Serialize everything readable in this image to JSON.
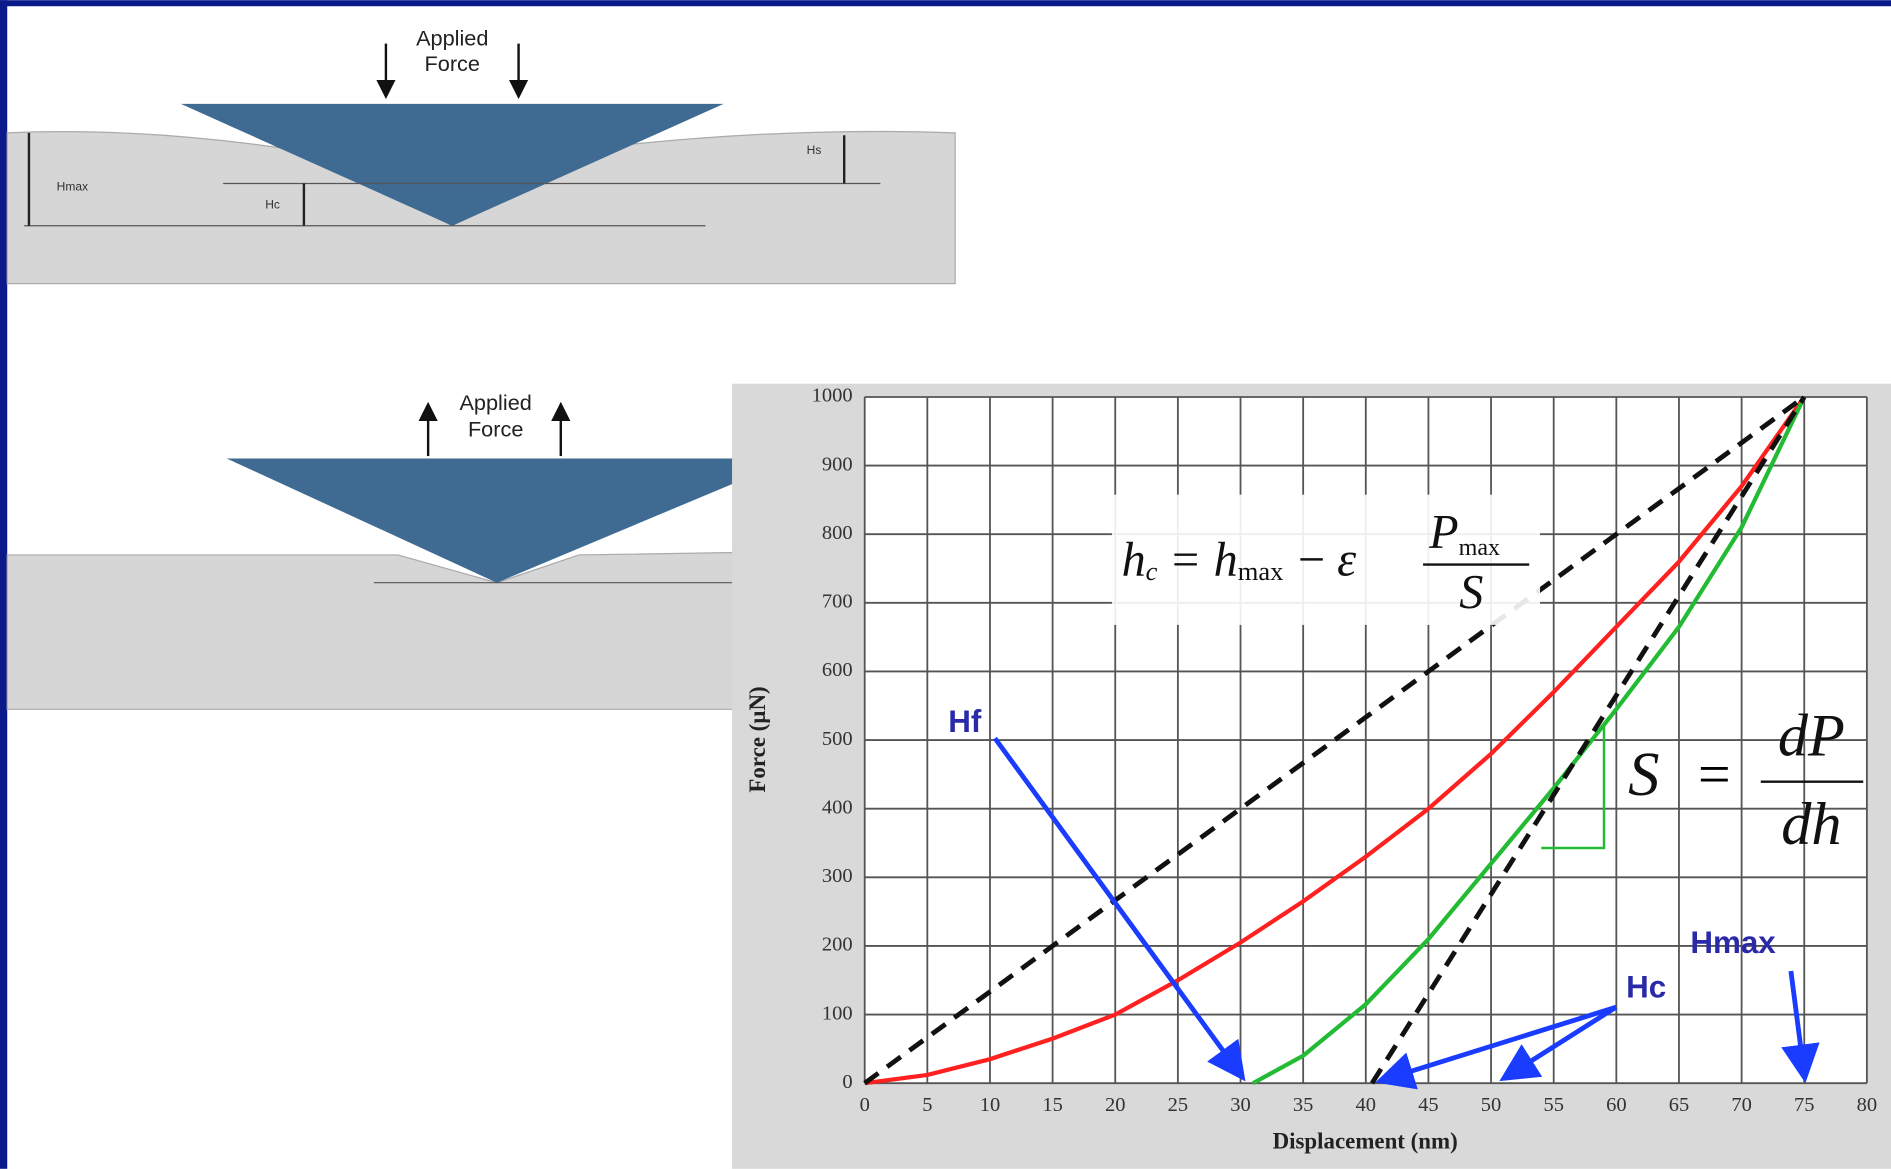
{
  "diagram": {
    "top": {
      "force": [
        "Applied",
        "Force"
      ],
      "labels": [
        "Hmax",
        "Hc",
        "Hs"
      ]
    },
    "bottom": {
      "force": [
        "Applied",
        "Force"
      ]
    }
  },
  "chart_data": {
    "type": "line",
    "xlabel": "Displacement (nm)",
    "ylabel": "Force (µN)",
    "xlim": [
      0,
      80
    ],
    "xticks": [
      0,
      5,
      10,
      15,
      20,
      25,
      30,
      35,
      40,
      45,
      50,
      55,
      60,
      65,
      70,
      75,
      80
    ],
    "ylim": [
      0,
      1000
    ],
    "yticks": [
      0,
      100,
      200,
      300,
      400,
      500,
      600,
      700,
      800,
      900,
      1000
    ],
    "grid": true,
    "series": [
      {
        "color": "#ff2020",
        "dash": false,
        "x": [
          0,
          5,
          10,
          15,
          20,
          25,
          30,
          35,
          40,
          45,
          50,
          55,
          60,
          65,
          70,
          75
        ],
        "values": [
          0,
          12,
          35,
          65,
          100,
          150,
          205,
          265,
          330,
          400,
          480,
          570,
          665,
          760,
          870,
          1000
        ]
      },
      {
        "color": "#22bb33",
        "dash": false,
        "x": [
          31,
          35,
          40,
          45,
          50,
          55,
          60,
          65,
          70,
          75
        ],
        "values": [
          0,
          40,
          115,
          210,
          320,
          430,
          545,
          665,
          810,
          1000
        ]
      },
      {
        "color": "#111111",
        "dash": true,
        "x": [
          0,
          75
        ],
        "values": [
          0,
          1000
        ]
      },
      {
        "color": "#111111",
        "dash": true,
        "x": [
          40.5,
          75
        ],
        "values": [
          0,
          1000
        ]
      }
    ],
    "annotations": [
      "Hf",
      "Hc",
      "Hmax"
    ],
    "formula_hc": [
      "h",
      "c",
      "=",
      "h",
      "max",
      "−",
      "ε",
      "P",
      "max",
      "S"
    ],
    "formula_s": [
      "S",
      "=",
      "dP",
      "dh"
    ]
  }
}
